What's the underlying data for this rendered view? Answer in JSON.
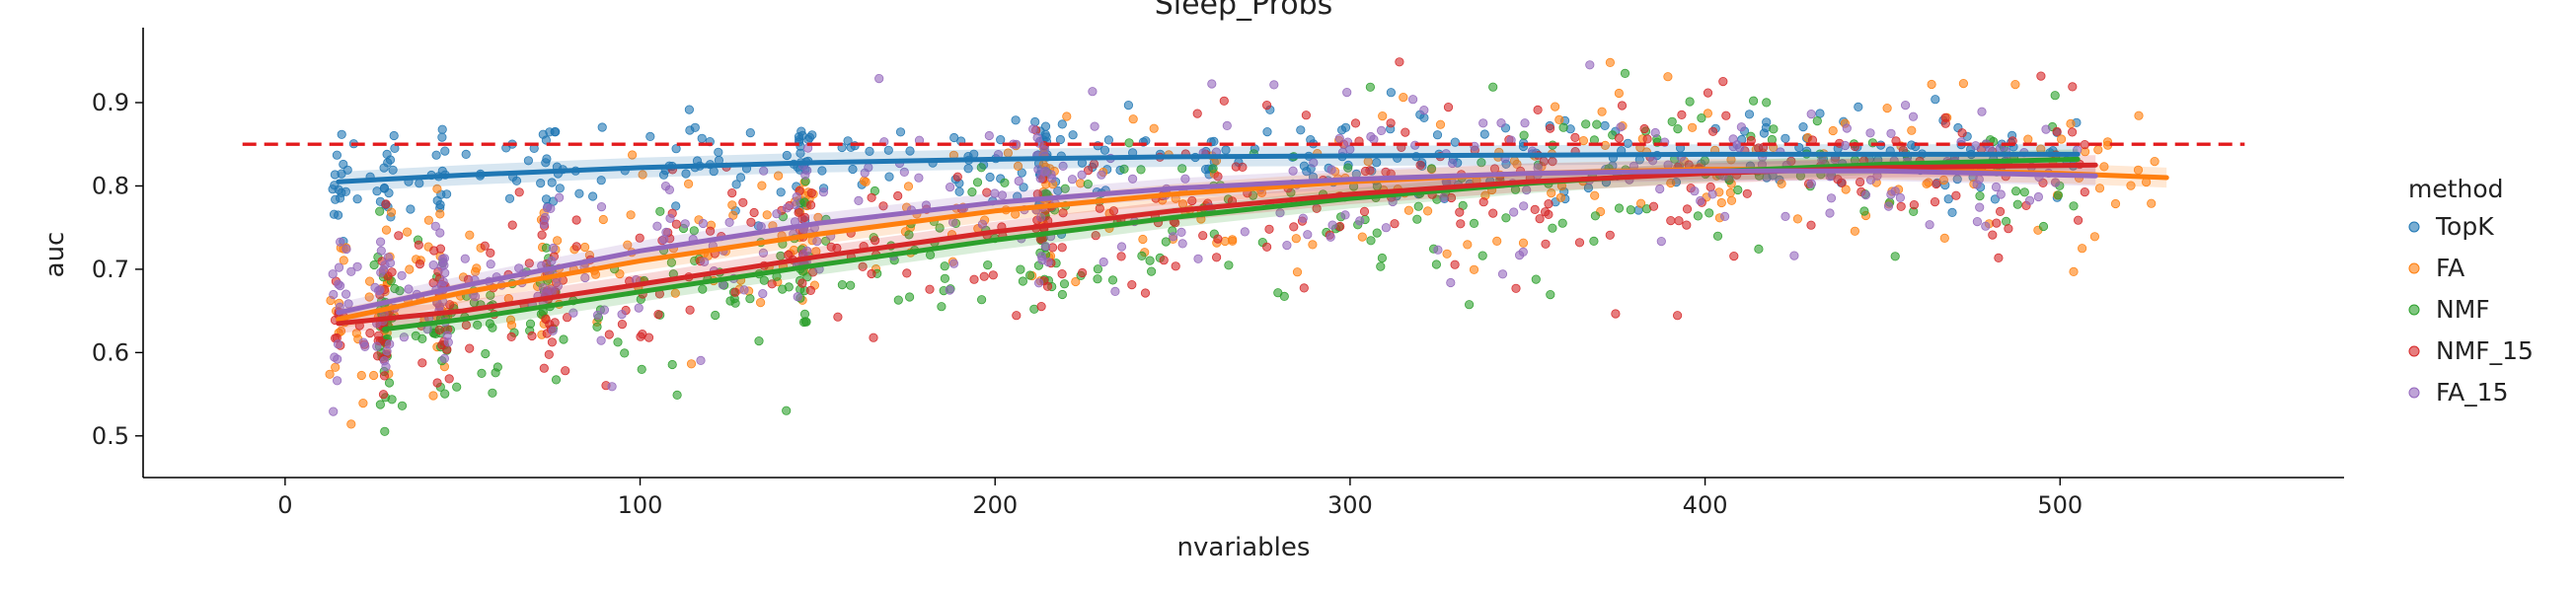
{
  "chart_data": {
    "type": "scatter",
    "title": "Sleep_Probs",
    "xlabel": "nvariables",
    "ylabel": "auc",
    "xlim": [
      -40,
      580
    ],
    "ylim": [
      0.45,
      0.99
    ],
    "xticks": [
      0,
      100,
      200,
      300,
      400,
      500
    ],
    "yticks": [
      0.5,
      0.6,
      0.7,
      0.8,
      0.9
    ],
    "grid": false,
    "reference_line": {
      "y": 0.85,
      "x_range": [
        -12,
        552
      ],
      "color": "#e31a1c",
      "style": "dashed"
    },
    "legend": {
      "title": "method",
      "placement": "right"
    },
    "series": [
      {
        "name": "TopK",
        "color": "#1f77b4",
        "x_range": [
          15,
          505
        ],
        "spread": 0.028,
        "trend": [
          [
            15,
            0.805
          ],
          [
            50,
            0.813
          ],
          [
            100,
            0.822
          ],
          [
            150,
            0.828
          ],
          [
            200,
            0.832
          ],
          [
            250,
            0.835
          ],
          [
            300,
            0.836
          ],
          [
            350,
            0.837
          ],
          [
            400,
            0.838
          ],
          [
            450,
            0.838
          ],
          [
            505,
            0.838
          ]
        ]
      },
      {
        "name": "FA",
        "color": "#ff7f0e",
        "x_range": [
          15,
          530
        ],
        "spread": 0.05,
        "trend": [
          [
            15,
            0.64
          ],
          [
            50,
            0.672
          ],
          [
            100,
            0.71
          ],
          [
            150,
            0.742
          ],
          [
            200,
            0.77
          ],
          [
            250,
            0.79
          ],
          [
            300,
            0.805
          ],
          [
            350,
            0.815
          ],
          [
            400,
            0.82
          ],
          [
            450,
            0.82
          ],
          [
            500,
            0.815
          ],
          [
            530,
            0.81
          ]
        ]
      },
      {
        "name": "NMF",
        "color": "#2ca02c",
        "x_range": [
          28,
          505
        ],
        "spread": 0.05,
        "trend": [
          [
            28,
            0.628
          ],
          [
            50,
            0.64
          ],
          [
            100,
            0.673
          ],
          [
            150,
            0.705
          ],
          [
            200,
            0.735
          ],
          [
            250,
            0.762
          ],
          [
            300,
            0.785
          ],
          [
            350,
            0.803
          ],
          [
            400,
            0.817
          ],
          [
            450,
            0.826
          ],
          [
            505,
            0.832
          ]
        ]
      },
      {
        "name": "NMF_15",
        "color": "#d62728",
        "x_range": [
          15,
          510
        ],
        "spread": 0.055,
        "trend": [
          [
            15,
            0.635
          ],
          [
            50,
            0.65
          ],
          [
            100,
            0.682
          ],
          [
            150,
            0.715
          ],
          [
            200,
            0.745
          ],
          [
            250,
            0.77
          ],
          [
            300,
            0.79
          ],
          [
            350,
            0.805
          ],
          [
            400,
            0.815
          ],
          [
            450,
            0.822
          ],
          [
            510,
            0.825
          ]
        ]
      },
      {
        "name": "FA_15",
        "color": "#9467bd",
        "x_range": [
          15,
          510
        ],
        "spread": 0.05,
        "trend": [
          [
            15,
            0.648
          ],
          [
            50,
            0.68
          ],
          [
            100,
            0.722
          ],
          [
            150,
            0.755
          ],
          [
            200,
            0.78
          ],
          [
            250,
            0.797
          ],
          [
            300,
            0.808
          ],
          [
            350,
            0.815
          ],
          [
            400,
            0.818
          ],
          [
            450,
            0.818
          ],
          [
            510,
            0.812
          ]
        ]
      }
    ]
  }
}
